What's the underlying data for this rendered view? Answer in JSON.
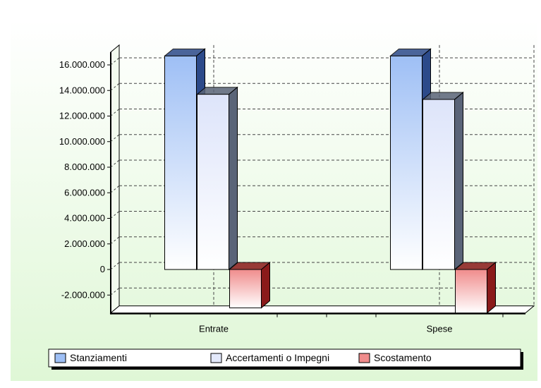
{
  "chart_data": {
    "type": "bar",
    "title": "",
    "xlabel": "",
    "ylabel": "",
    "categories": [
      "Entrate",
      "Spese"
    ],
    "series": [
      {
        "name": "Stanziamenti",
        "values": [
          16700000,
          16700000
        ],
        "color": "#9ebff5",
        "dark": "#2c4a8a"
      },
      {
        "name": "Accertamenti o Impegni",
        "values": [
          13700000,
          13300000
        ],
        "color": "#e3e9fb",
        "dark": "#5a6478"
      },
      {
        "name": "Scostamento",
        "values": [
          -3000000,
          -3400000
        ],
        "color": "#f08c8c",
        "dark": "#8a1a1a"
      }
    ],
    "y_ticks": [
      "16.000.000",
      "14.000.000",
      "12.000.000",
      "10.000.000",
      "8.000.000",
      "6.000.000",
      "4.000.000",
      "2.000.000",
      "0",
      "-2.000.000"
    ],
    "y_tick_values": [
      16000000,
      14000000,
      12000000,
      10000000,
      8000000,
      6000000,
      4000000,
      2000000,
      0,
      -2000000
    ],
    "ylim": [
      -3400000,
      17000000
    ],
    "grid": true,
    "legend_placement": "bottom"
  }
}
